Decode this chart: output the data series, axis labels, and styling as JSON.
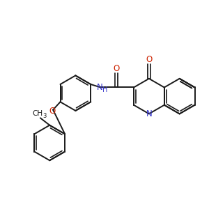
{
  "bg": "#ffffff",
  "bond_color": "#1a1a1a",
  "N_color": "#3333cc",
  "O_color": "#cc2200",
  "bond_lw": 1.4,
  "db_lw": 1.2,
  "font_size": 8.0,
  "figsize": [
    3.0,
    3.0
  ],
  "dpi": 100,
  "xlim": [
    -0.5,
    9.5
  ],
  "ylim": [
    -0.5,
    9.5
  ],
  "ring_r": 0.85,
  "db_off": 0.1
}
